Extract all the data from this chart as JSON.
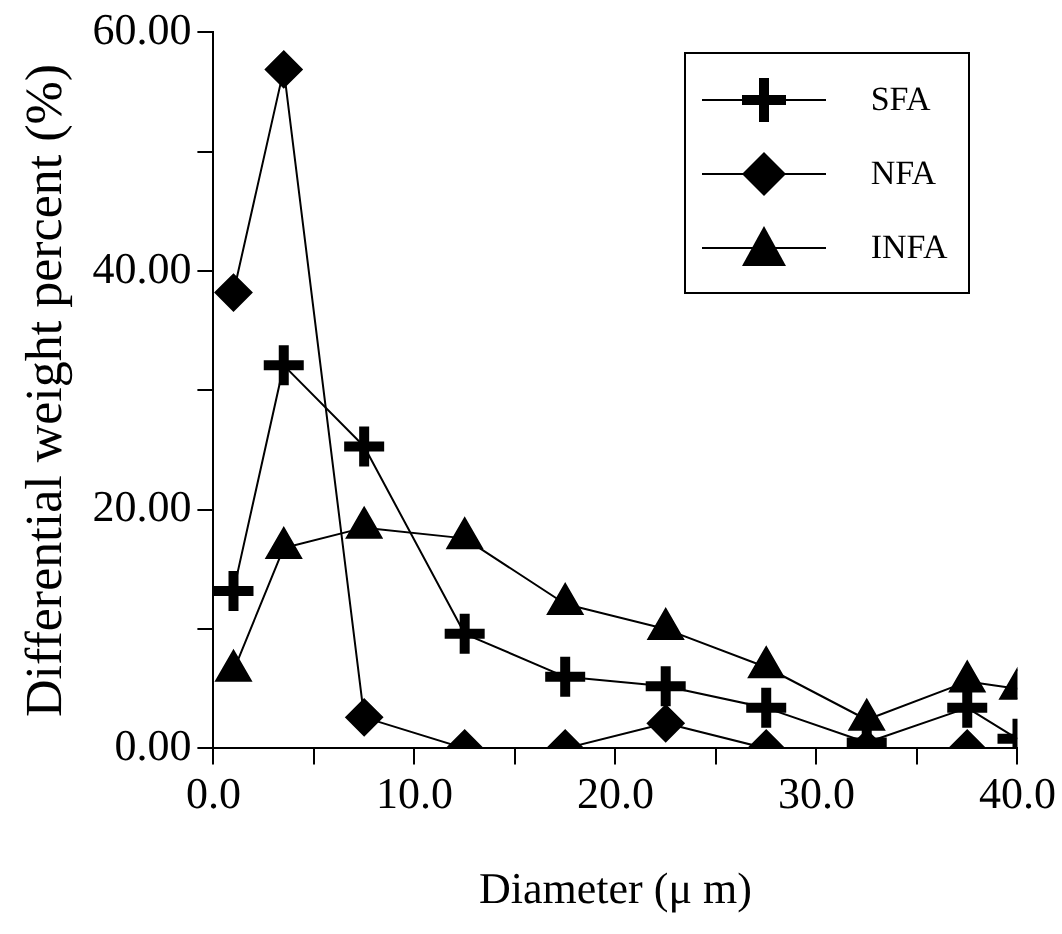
{
  "chart_data": {
    "type": "line",
    "xlabel": "Diameter (μ m)",
    "ylabel": "Differential weight percent (%)",
    "xlim": [
      0,
      40
    ],
    "ylim": [
      0,
      60
    ],
    "xticks": [
      {
        "value": 0,
        "label": "0.0"
      },
      {
        "value": 5,
        "label": null
      },
      {
        "value": 10,
        "label": "10.0"
      },
      {
        "value": 15,
        "label": null
      },
      {
        "value": 20,
        "label": "20.0"
      },
      {
        "value": 25,
        "label": null
      },
      {
        "value": 30,
        "label": "30.0"
      },
      {
        "value": 35,
        "label": null
      },
      {
        "value": 40,
        "label": "40.0"
      }
    ],
    "yticks": [
      {
        "value": 0,
        "label": "0.00"
      },
      {
        "value": 10,
        "label": null
      },
      {
        "value": 20,
        "label": "20.00"
      },
      {
        "value": 30,
        "label": null
      },
      {
        "value": 40,
        "label": "40.00"
      },
      {
        "value": 50,
        "label": null
      },
      {
        "value": 60,
        "label": "60.00"
      }
    ],
    "grid": false,
    "legend": "top right",
    "line_style": "solid",
    "series": [
      {
        "name": "SFA",
        "color": "#000000",
        "marker": "cross",
        "x": [
          1,
          3.5,
          7.5,
          12.5,
          17.5,
          22.5,
          27.5,
          32.5,
          37.5,
          40
        ],
        "values": [
          13.2,
          32.1,
          25.3,
          9.6,
          6.0,
          5.2,
          3.4,
          0.5,
          3.4,
          0.8
        ]
      },
      {
        "name": "NFA",
        "color": "#000000",
        "marker": "diamond",
        "x": [
          1,
          3.5,
          7.5,
          12.5,
          17.5,
          22.5,
          27.5,
          32.5,
          37.5
        ],
        "values": [
          38.2,
          56.9,
          2.6,
          0,
          0,
          2.1,
          0,
          0,
          0
        ]
      },
      {
        "name": "INFA",
        "color": "#000000",
        "marker": "triangle",
        "x": [
          1,
          3.5,
          7.5,
          12.5,
          17.5,
          22.5,
          27.5,
          32.5,
          37.5,
          40
        ],
        "values": [
          6.5,
          16.8,
          18.5,
          17.6,
          12.1,
          10.0,
          6.8,
          2.4,
          5.6,
          5.0
        ]
      }
    ]
  }
}
